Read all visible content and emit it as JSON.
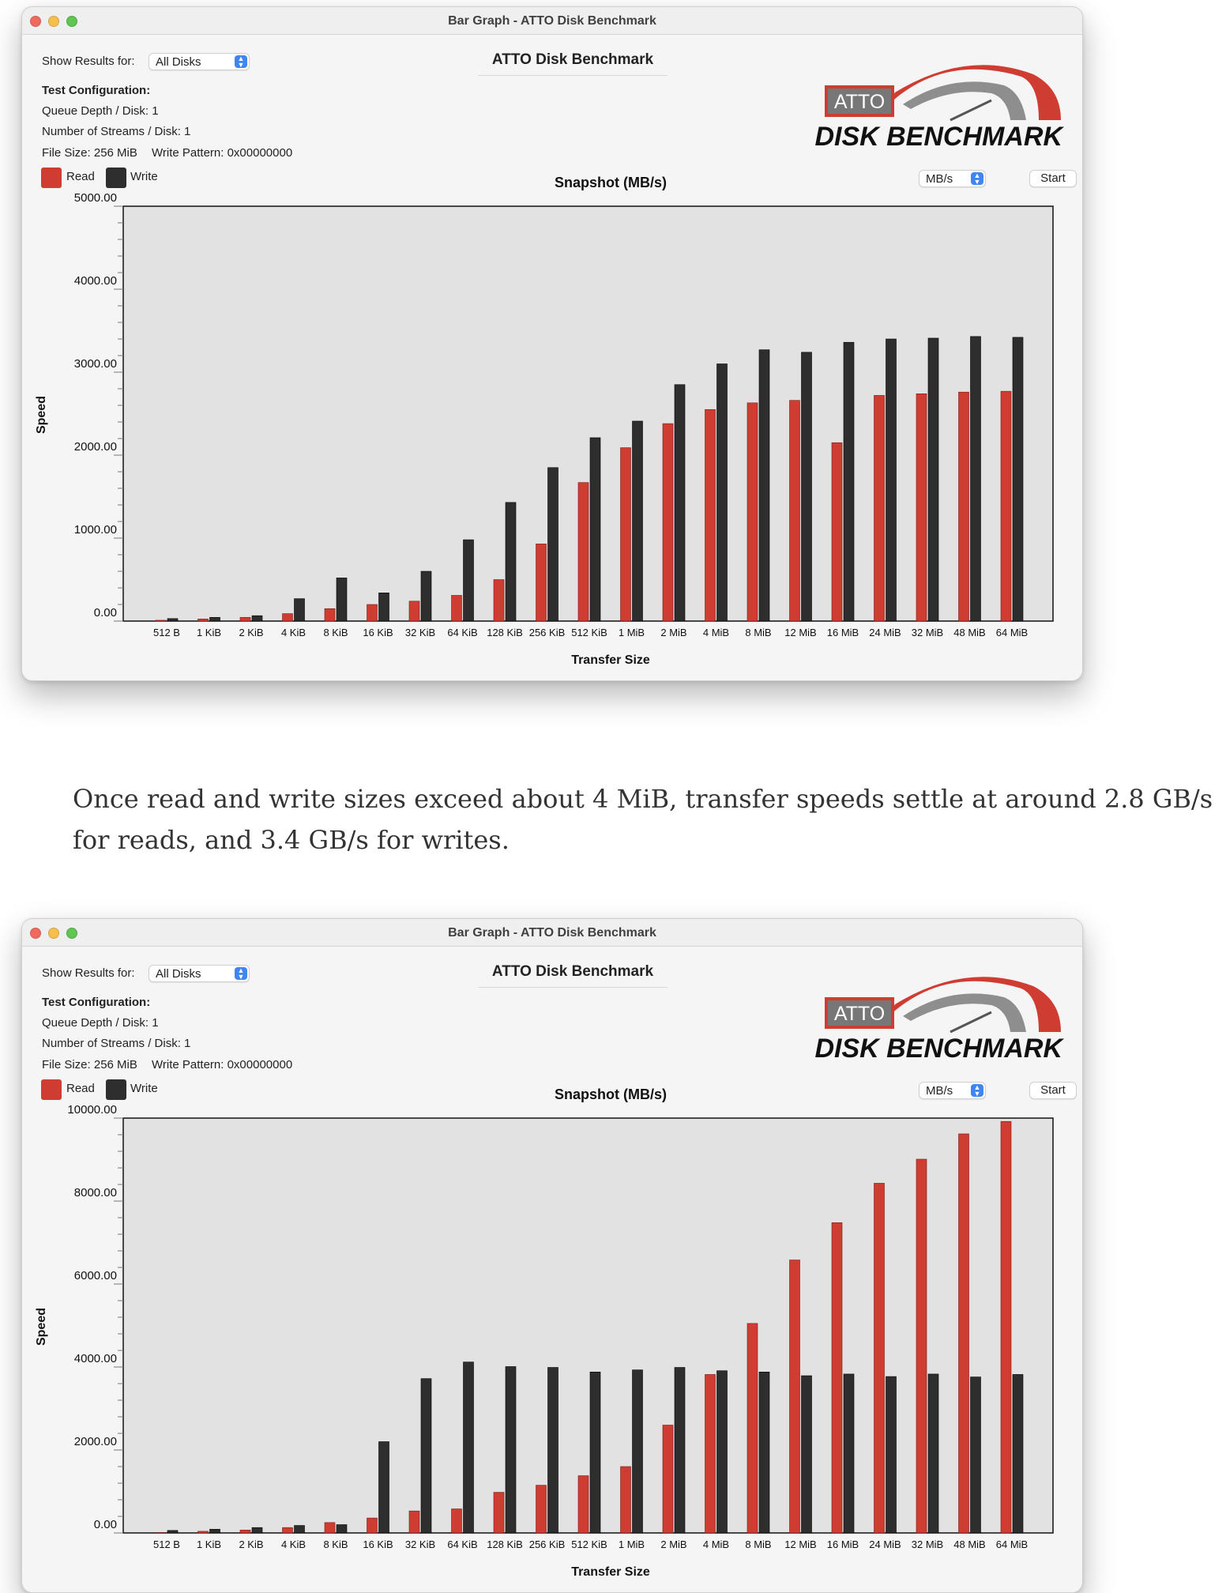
{
  "windows": [
    {
      "title": "Bar Graph - ATTO Disk Benchmark",
      "show_results_label": "Show Results for:",
      "show_results_value": "All Disks",
      "bench_title": "ATTO Disk Benchmark",
      "config_header": "Test Configuration:",
      "queue_depth": "Queue Depth / Disk: 1",
      "streams": "Number of Streams / Disk: 1",
      "file_size": "File Size: 256 MiB",
      "write_pattern": "Write Pattern: 0x00000000",
      "legend_read": "Read",
      "legend_write": "Write",
      "logo_atto": "ATTO",
      "logo_text": "DISK BENCHMARK",
      "unit_value": "MB/s",
      "start_label": "Start"
    },
    {
      "title": "Bar Graph - ATTO Disk Benchmark",
      "show_results_label": "Show Results for:",
      "show_results_value": "All Disks",
      "bench_title": "ATTO Disk Benchmark",
      "config_header": "Test Configuration:",
      "queue_depth": "Queue Depth / Disk: 1",
      "streams": "Number of Streams / Disk: 1",
      "file_size": "File Size: 256 MiB",
      "write_pattern": "Write Pattern: 0x00000000",
      "legend_read": "Read",
      "legend_write": "Write",
      "logo_atto": "ATTO",
      "logo_text": "DISK BENCHMARK",
      "unit_value": "MB/s",
      "start_label": "Start"
    }
  ],
  "prose": "Once read and write sizes exceed about 4 MiB, transfer speeds settle at around 2.8 GB/s for reads, and 3.4 GB/s for writes.",
  "colors": {
    "read": "#cf3c32",
    "write": "#2e2e2e",
    "plot_bg": "#e2e2e2"
  },
  "chart_data": [
    {
      "type": "bar",
      "title": "Snapshot (MB/s)",
      "xlabel": "Transfer Size",
      "ylabel": "Speed",
      "ylim": [
        0,
        5000
      ],
      "yticks": [
        "0.00",
        "1000.00",
        "2000.00",
        "3000.00",
        "4000.00",
        "5000.00"
      ],
      "grid": false,
      "legend": "top-left",
      "categories": [
        "512 B",
        "1 KiB",
        "2 KiB",
        "4 KiB",
        "8 KiB",
        "16 KiB",
        "32 KiB",
        "64 KiB",
        "128 KiB",
        "256 KiB",
        "512 KiB",
        "1 MiB",
        "2 MiB",
        "4 MiB",
        "8 MiB",
        "12 MiB",
        "16 MiB",
        "24 MiB",
        "32 MiB",
        "48 MiB",
        "64 MiB"
      ],
      "series": [
        {
          "name": "Read",
          "values": [
            10,
            25,
            45,
            90,
            150,
            200,
            240,
            310,
            500,
            930,
            1670,
            2090,
            2380,
            2550,
            2630,
            2660,
            2150,
            2720,
            2740,
            2760,
            2770
          ]
        },
        {
          "name": "Write",
          "values": [
            30,
            45,
            65,
            270,
            520,
            340,
            600,
            980,
            1430,
            1850,
            2210,
            2410,
            2850,
            3100,
            3270,
            3240,
            3360,
            3400,
            3410,
            3430,
            3420
          ]
        }
      ]
    },
    {
      "type": "bar",
      "title": "Snapshot (MB/s)",
      "xlabel": "Transfer Size",
      "ylabel": "Speed",
      "ylim": [
        0,
        10000
      ],
      "yticks": [
        "0.00",
        "2000.00",
        "4000.00",
        "6000.00",
        "8000.00",
        "10000.00"
      ],
      "grid": false,
      "legend": "top-left",
      "categories": [
        "512 B",
        "1 KiB",
        "2 KiB",
        "4 KiB",
        "8 KiB",
        "16 KiB",
        "32 KiB",
        "64 KiB",
        "128 KiB",
        "256 KiB",
        "512 KiB",
        "1 MiB",
        "2 MiB",
        "4 MiB",
        "8 MiB",
        "12 MiB",
        "16 MiB",
        "24 MiB",
        "32 MiB",
        "48 MiB",
        "64 MiB"
      ],
      "series": [
        {
          "name": "Read",
          "values": [
            10,
            40,
            70,
            130,
            250,
            360,
            530,
            580,
            980,
            1150,
            1380,
            1600,
            2600,
            3820,
            5050,
            6580,
            7480,
            8430,
            9010,
            9620,
            9920
          ]
        },
        {
          "name": "Write",
          "values": [
            60,
            90,
            130,
            180,
            200,
            2200,
            3720,
            4120,
            4010,
            3990,
            3880,
            3930,
            3990,
            3910,
            3880,
            3790,
            3830,
            3770,
            3830,
            3760,
            3820
          ]
        }
      ]
    }
  ]
}
